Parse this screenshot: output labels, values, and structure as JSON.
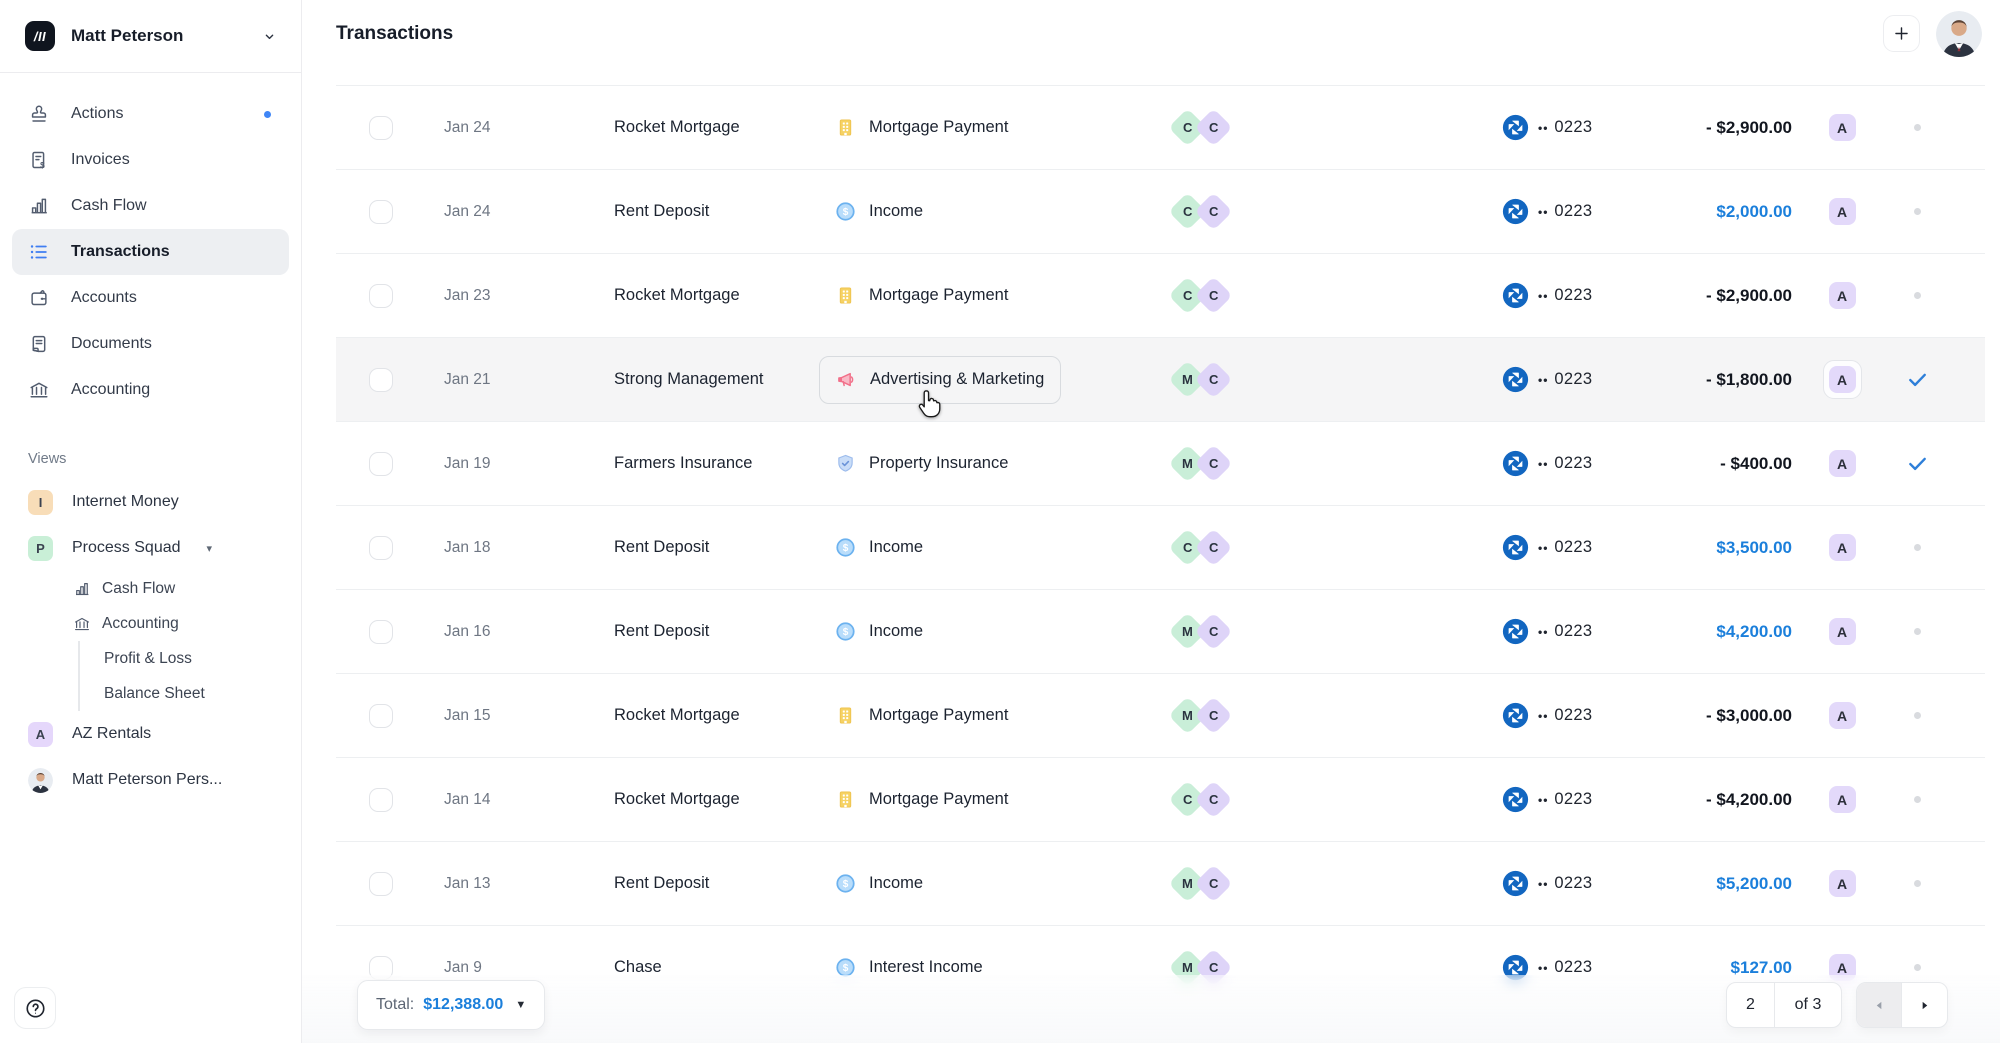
{
  "app": {
    "logo_glyph": "/II",
    "workspace_name": "Matt Peterson"
  },
  "colors": {
    "accent_blue": "#1b7fdb",
    "check_blue": "#2e7fd9",
    "chase_blue": "#1266c0",
    "tag_green": "#c9eed8",
    "tag_purple": "#ded4f8",
    "badge_purple": "#e3d9fa",
    "selected_nav_bg": "#edeff2",
    "actions_dot_blue": "#3f86f6"
  },
  "sidebar": {
    "nav": [
      {
        "label": "Actions",
        "icon": "stamp-icon",
        "badge_dot": true
      },
      {
        "label": "Invoices",
        "icon": "invoice-icon"
      },
      {
        "label": "Cash Flow",
        "icon": "bar-chart-icon"
      },
      {
        "label": "Transactions",
        "icon": "list-icon",
        "selected": true
      },
      {
        "label": "Accounts",
        "icon": "wallet-icon"
      },
      {
        "label": "Documents",
        "icon": "document-icon"
      },
      {
        "label": "Accounting",
        "icon": "bank-icon"
      }
    ],
    "views_label": "Views",
    "views": [
      {
        "label": "Internet Money",
        "initial": "I",
        "color": "#f8ddb8"
      },
      {
        "label": "Process Squad",
        "initial": "P",
        "color": "#c9efd7",
        "expanded": true,
        "children_iconed": [
          {
            "label": "Cash Flow",
            "icon": "bar-chart-icon"
          },
          {
            "label": "Accounting",
            "icon": "bank-icon"
          }
        ],
        "children_plain": [
          {
            "label": "Profit & Loss"
          },
          {
            "label": "Balance Sheet"
          }
        ]
      },
      {
        "label": "AZ Rentals",
        "initial": "A",
        "color": "#e5d7fb"
      },
      {
        "label": "Matt Peterson Pers...",
        "avatar": true
      }
    ]
  },
  "header": {
    "title": "Transactions"
  },
  "table": {
    "account_mask": "••",
    "rows": [
      {
        "date": "Jan 24",
        "merchant": "Rocket Mortgage",
        "category": "Mortgage Payment",
        "category_icon": "building-icon",
        "tags": [
          "C",
          "C"
        ],
        "account_last4": "0223",
        "amount": "- $2,900.00",
        "positive": false,
        "badge": "A",
        "status": "dot"
      },
      {
        "date": "Jan 24",
        "merchant": "Rent Deposit",
        "category": "Income",
        "category_icon": "coin-icon",
        "tags": [
          "C",
          "C"
        ],
        "account_last4": "0223",
        "amount": "$2,000.00",
        "positive": true,
        "badge": "A",
        "status": "dot"
      },
      {
        "date": "Jan 23",
        "merchant": "Rocket Mortgage",
        "category": "Mortgage Payment",
        "category_icon": "building-icon",
        "tags": [
          "C",
          "C"
        ],
        "account_last4": "0223",
        "amount": "- $2,900.00",
        "positive": false,
        "badge": "A",
        "status": "dot"
      },
      {
        "date": "Jan 21",
        "merchant": "Strong Management",
        "category": "Advertising & Marketing",
        "category_icon": "megaphone-icon",
        "tags": [
          "M",
          "C"
        ],
        "account_last4": "0223",
        "amount": "- $1,800.00",
        "positive": false,
        "badge": "A",
        "status": "check",
        "hovered": true,
        "chip": true,
        "badge_ringed": true
      },
      {
        "date": "Jan 19",
        "merchant": "Farmers Insurance",
        "category": "Property Insurance",
        "category_icon": "shield-icon",
        "tags": [
          "M",
          "C"
        ],
        "account_last4": "0223",
        "amount": "- $400.00",
        "positive": false,
        "badge": "A",
        "status": "check"
      },
      {
        "date": "Jan 18",
        "merchant": "Rent Deposit",
        "category": "Income",
        "category_icon": "coin-icon",
        "tags": [
          "C",
          "C"
        ],
        "account_last4": "0223",
        "amount": "$3,500.00",
        "positive": true,
        "badge": "A",
        "status": "dot"
      },
      {
        "date": "Jan 16",
        "merchant": "Rent Deposit",
        "category": "Income",
        "category_icon": "coin-icon",
        "tags": [
          "M",
          "C"
        ],
        "account_last4": "0223",
        "amount": "$4,200.00",
        "positive": true,
        "badge": "A",
        "status": "dot"
      },
      {
        "date": "Jan 15",
        "merchant": "Rocket Mortgage",
        "category": "Mortgage Payment",
        "category_icon": "building-icon",
        "tags": [
          "M",
          "C"
        ],
        "account_last4": "0223",
        "amount": "- $3,000.00",
        "positive": false,
        "badge": "A",
        "status": "dot"
      },
      {
        "date": "Jan 14",
        "merchant": "Rocket Mortgage",
        "category": "Mortgage Payment",
        "category_icon": "building-icon",
        "tags": [
          "C",
          "C"
        ],
        "account_last4": "0223",
        "amount": "- $4,200.00",
        "positive": false,
        "badge": "A",
        "status": "dot"
      },
      {
        "date": "Jan 13",
        "merchant": "Rent Deposit",
        "category": "Income",
        "category_icon": "coin-icon",
        "tags": [
          "M",
          "C"
        ],
        "account_last4": "0223",
        "amount": "$5,200.00",
        "positive": true,
        "badge": "A",
        "status": "dot"
      },
      {
        "date": "Jan 9",
        "merchant": "Chase",
        "category": "Interest Income",
        "category_icon": "coin-icon",
        "tags": [
          "M",
          "C"
        ],
        "account_last4": "0223",
        "amount": "$127.00",
        "positive": true,
        "badge": "A",
        "status": "dot",
        "partial": true
      }
    ]
  },
  "footer": {
    "total_label": "Total:",
    "total_value": "$12,388.00",
    "pagination": {
      "current": "2",
      "of_label": "of 3"
    }
  }
}
